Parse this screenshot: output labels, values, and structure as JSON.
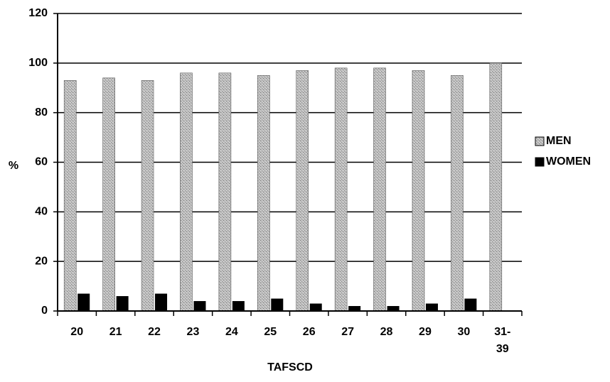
{
  "chart_data": {
    "type": "bar",
    "title": "",
    "xlabel": "TAFSCD",
    "ylabel": "%",
    "ylim": [
      0,
      120
    ],
    "yticks": [
      0,
      20,
      40,
      60,
      80,
      100,
      120
    ],
    "grid": true,
    "legend_position": "right",
    "categories": [
      [
        "20"
      ],
      [
        "21"
      ],
      [
        "22"
      ],
      [
        "23"
      ],
      [
        "24"
      ],
      [
        "25"
      ],
      [
        "26"
      ],
      [
        "27"
      ],
      [
        "28"
      ],
      [
        "29"
      ],
      [
        "30"
      ],
      [
        "31-",
        "39"
      ]
    ],
    "series": [
      {
        "name": "MEN",
        "color": "#b8b8b8",
        "pattern": "dotted-gray",
        "values": [
          93,
          94,
          93,
          96,
          96,
          95,
          97,
          98,
          98,
          97,
          95,
          100
        ]
      },
      {
        "name": "WOMEN",
        "color": "#000000",
        "values": [
          7,
          6,
          7,
          4,
          4,
          5,
          3,
          2,
          2,
          3,
          5,
          0
        ]
      }
    ]
  }
}
